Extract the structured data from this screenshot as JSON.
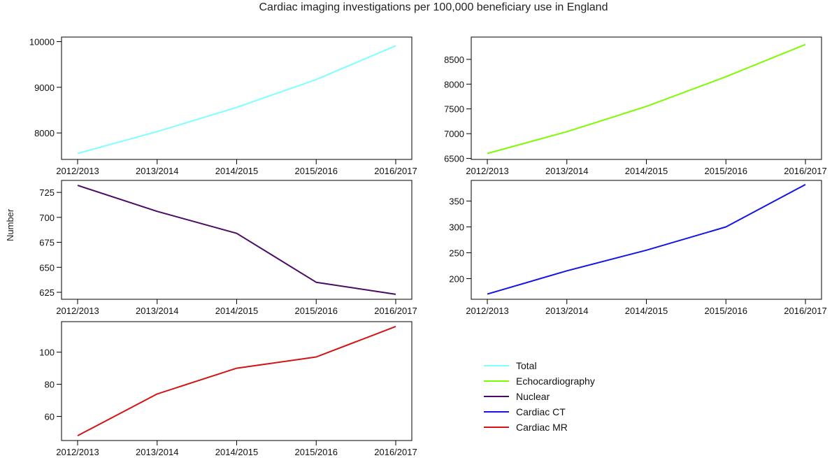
{
  "title": "Cardiac imaging investigations per 100,000 beneficiary use in England",
  "ylabel": "Number",
  "chart_data": [
    {
      "type": "line",
      "categories": [
        "2012/2013",
        "2013/2014",
        "2014/2015",
        "2015/2016",
        "2016/2017"
      ],
      "series": [
        {
          "name": "Total",
          "color": "#7FFFFF",
          "values": [
            7550,
            8030,
            8560,
            9170,
            9910
          ]
        }
      ],
      "ylim": [
        7420,
        10100
      ],
      "yticks": [
        8000,
        9000,
        10000
      ]
    },
    {
      "type": "line",
      "categories": [
        "2012/2013",
        "2013/2014",
        "2014/2015",
        "2015/2016",
        "2016/2017"
      ],
      "series": [
        {
          "name": "Echocardiography",
          "color": "#7CFC00",
          "values": [
            6600,
            7040,
            7550,
            8150,
            8800
          ]
        }
      ],
      "ylim": [
        6480,
        8950
      ],
      "yticks": [
        6500,
        7000,
        7500,
        8000,
        8500
      ]
    },
    {
      "type": "line",
      "categories": [
        "2012/2013",
        "2013/2014",
        "2014/2015",
        "2015/2016",
        "2016/2017"
      ],
      "series": [
        {
          "name": "Nuclear",
          "color": "#4B0A63",
          "values": [
            732,
            706,
            684,
            635,
            623
          ]
        }
      ],
      "ylim": [
        618,
        737
      ],
      "yticks": [
        625,
        650,
        675,
        700,
        725
      ]
    },
    {
      "type": "line",
      "categories": [
        "2012/2013",
        "2013/2014",
        "2014/2015",
        "2015/2016",
        "2016/2017"
      ],
      "series": [
        {
          "name": "Cardiac CT",
          "color": "#1414E6",
          "values": [
            170,
            215,
            255,
            300,
            382
          ]
        }
      ],
      "ylim": [
        160,
        390
      ],
      "yticks": [
        200,
        250,
        300,
        350
      ]
    },
    {
      "type": "line",
      "categories": [
        "2012/2013",
        "2013/2014",
        "2014/2015",
        "2015/2016",
        "2016/2017"
      ],
      "series": [
        {
          "name": "Cardiac MR",
          "color": "#D41414",
          "values": [
            48,
            74,
            90,
            97,
            116
          ]
        }
      ],
      "ylim": [
        45,
        119
      ],
      "yticks": [
        60,
        80,
        100
      ]
    }
  ],
  "legend": [
    {
      "label": "Total",
      "color": "#7FFFFF"
    },
    {
      "label": "Echocardiography",
      "color": "#7CFC00"
    },
    {
      "label": "Nuclear",
      "color": "#4B0A63"
    },
    {
      "label": "Cardiac CT",
      "color": "#1414E6"
    },
    {
      "label": "Cardiac MR",
      "color": "#D41414"
    }
  ]
}
